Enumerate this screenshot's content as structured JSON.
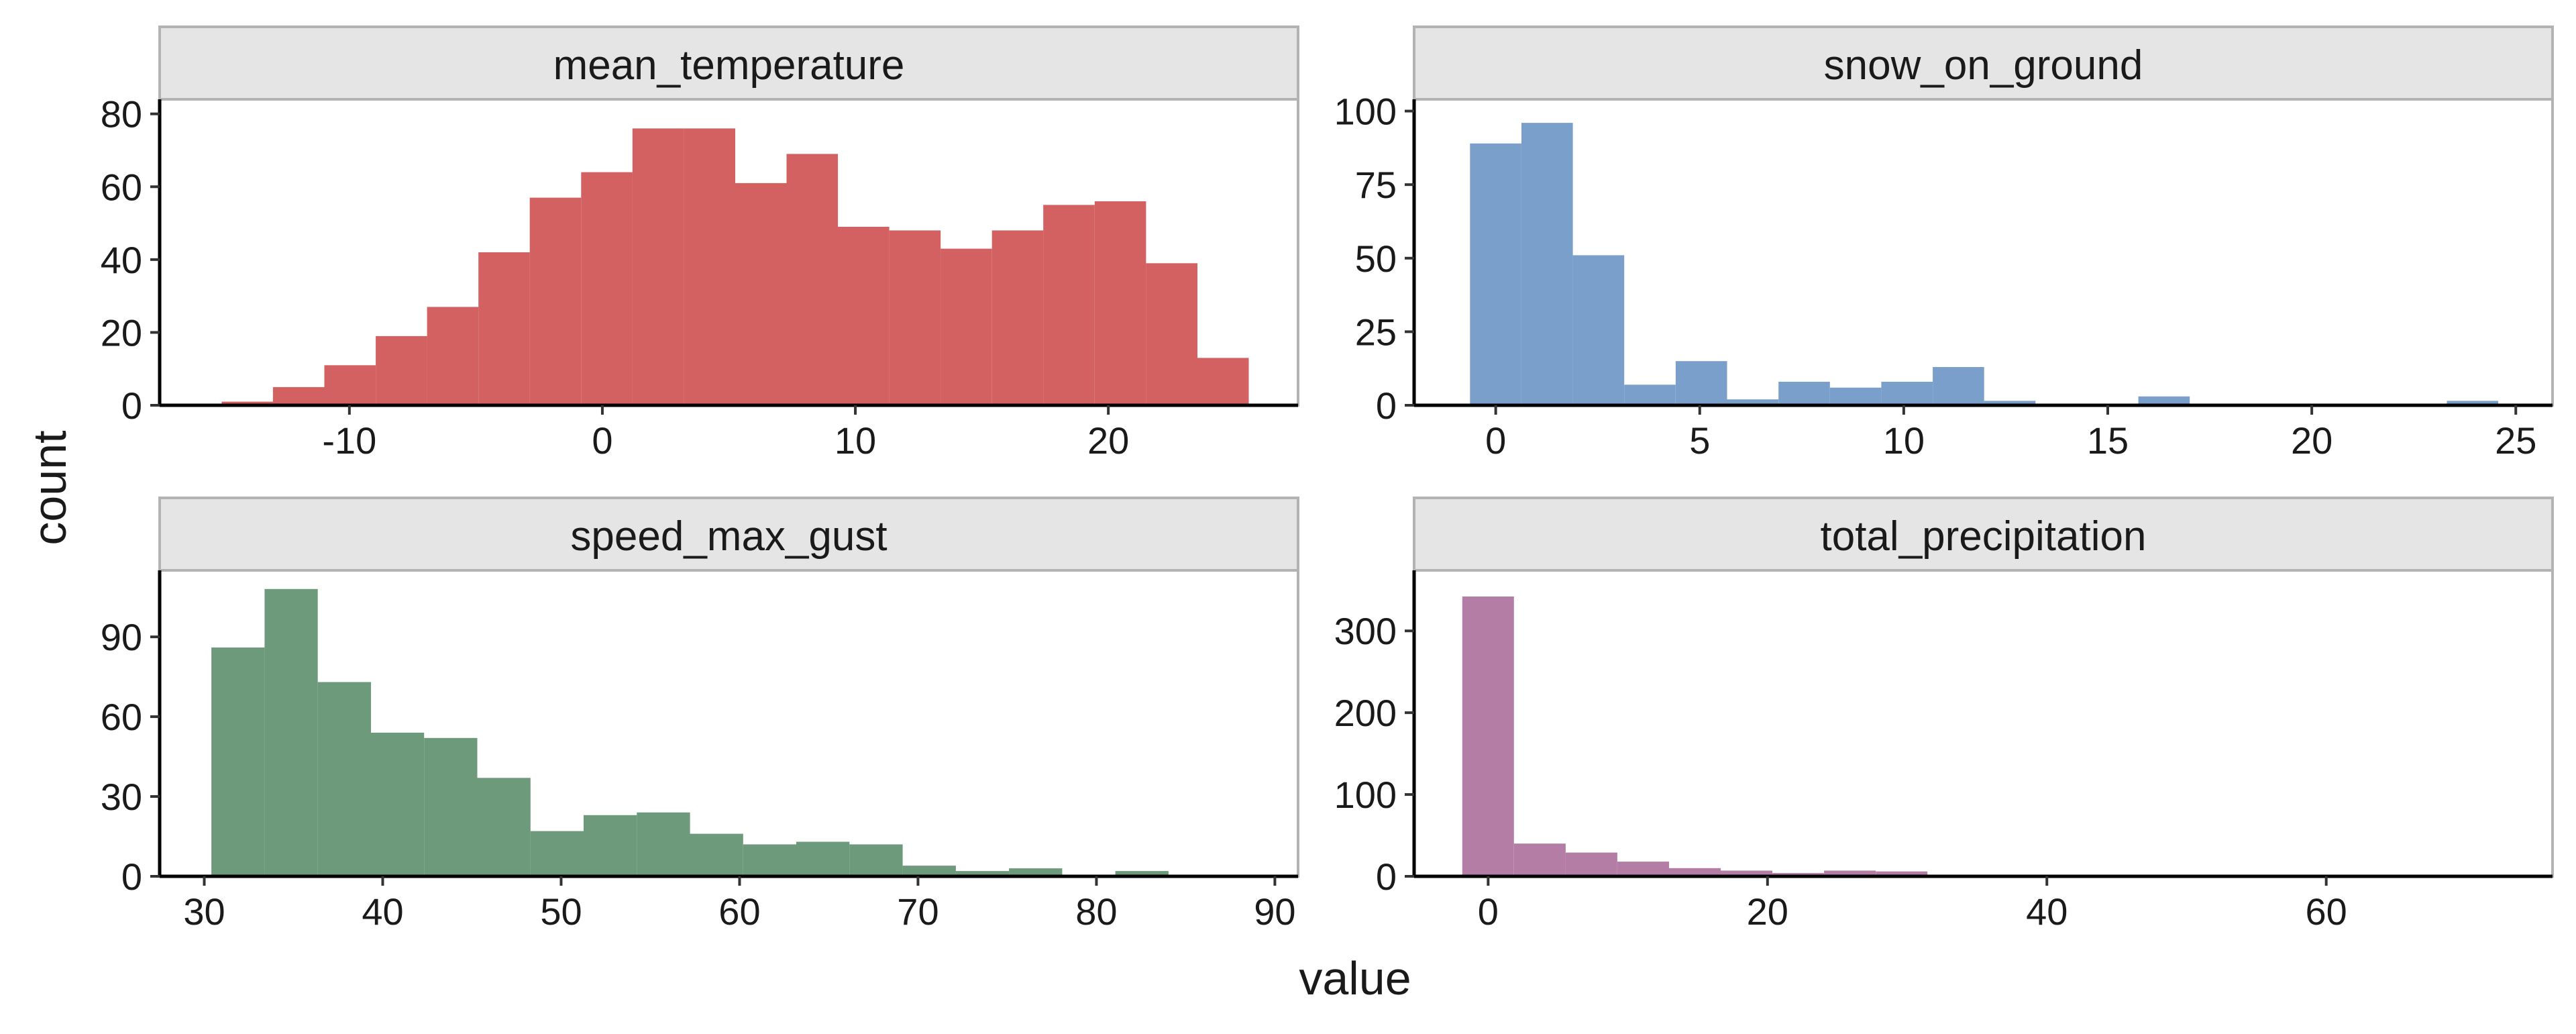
{
  "figure": {
    "xlabel": "value",
    "ylabel": "count"
  },
  "chart_data": [
    {
      "type": "bar",
      "title": "mean_temperature",
      "color": "#d46162",
      "xlim": [
        -17.5,
        27.5
      ],
      "ylim": [
        0,
        84
      ],
      "xticks": [
        -10,
        0,
        10,
        20
      ],
      "yticks": [
        0,
        20,
        40,
        60,
        80
      ],
      "bin_start": -15.05,
      "bin_width": 2.03,
      "values": [
        1,
        5,
        11,
        19,
        27,
        42,
        57,
        64,
        76,
        76,
        61,
        69,
        49,
        48,
        43,
        48,
        55,
        56,
        39,
        13
      ]
    },
    {
      "type": "bar",
      "title": "snow_on_ground",
      "color": "#7a9fcb",
      "xlim": [
        -2.0,
        25.9
      ],
      "ylim": [
        0,
        104
      ],
      "xticks": [
        0,
        5,
        10,
        15,
        20,
        25
      ],
      "yticks": [
        0,
        25,
        50,
        75,
        100
      ],
      "bin_start": -0.63,
      "bin_width": 1.26,
      "values": [
        89,
        96,
        51,
        7,
        15,
        2,
        8,
        6,
        8,
        13,
        1.5,
        0.5,
        0.5,
        3,
        0,
        0.5,
        0,
        0,
        0.5,
        1.5
      ]
    },
    {
      "type": "bar",
      "title": "speed_max_gust",
      "color": "#6e9a7c",
      "xlim": [
        27.5,
        91.3
      ],
      "ylim": [
        0,
        115
      ],
      "xticks": [
        30,
        40,
        50,
        60,
        70,
        80,
        90
      ],
      "yticks": [
        0,
        30,
        60,
        90
      ],
      "bin_start": 30.4,
      "bin_width": 2.98,
      "values": [
        86,
        108,
        73,
        54,
        52,
        37,
        17,
        23,
        24,
        16,
        12,
        13,
        12,
        4,
        2,
        3,
        0,
        2,
        0.5,
        0.5
      ]
    },
    {
      "type": "bar",
      "title": "total_precipitation",
      "color": "#b47da6",
      "xlim": [
        -5.3,
        76.2
      ],
      "ylim": [
        0,
        374
      ],
      "xticks": [
        0,
        20,
        40,
        60
      ],
      "yticks": [
        0,
        100,
        200,
        300
      ],
      "bin_start": -1.85,
      "bin_width": 3.7,
      "values": [
        342,
        40,
        29,
        18,
        10,
        7,
        4,
        7,
        6,
        1.5,
        0.5,
        2,
        0.5,
        0.5,
        0.5,
        0.5,
        0.5,
        0.5,
        0.5,
        0.5
      ]
    }
  ]
}
